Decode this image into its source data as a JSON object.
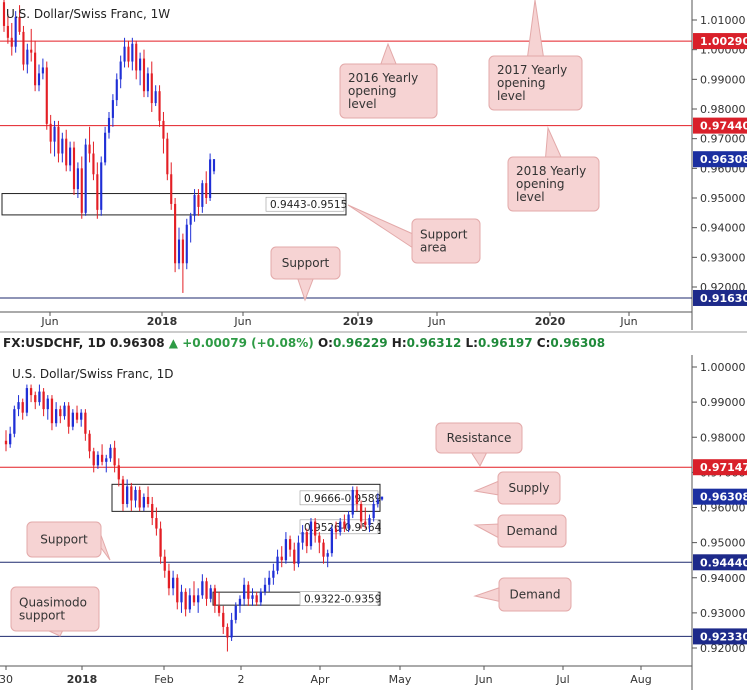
{
  "colors": {
    "bull": "#1f2fd6",
    "bear": "#e31e24",
    "red_level": "#e31e24",
    "blue_level": "#1d2a6e",
    "callout_bg": "#f6d3d3",
    "callout_border": "#e3a9a9",
    "price_tag_red": "#d9202a",
    "price_tag_blue": "#1d2a8a",
    "current_tag": "#1b2fa0"
  },
  "infobar": {
    "symbol": "FX:USDCHF, 1D",
    "last": "0.96308",
    "change": "+0.00079 (+0.08%)",
    "open_label": "O:",
    "open": "0.96229",
    "high_label": "H:",
    "high": "0.96312",
    "low_label": "L:",
    "low": "0.96197",
    "close_label": "C:",
    "close": "0.96308"
  },
  "chart_data": [
    {
      "type": "candlestick",
      "title": "U.S. Dollar/Swiss Franc, 1W",
      "y_axis": {
        "range": [
          0.9135,
          1.0185
        ],
        "tick_labels": [
          "1.01000",
          "1.00000",
          "0.99000",
          "0.98000",
          "0.97000",
          "0.96000",
          "0.95000",
          "0.94000",
          "0.93000",
          "0.92000"
        ]
      },
      "x_axis": {
        "tick_labels": [
          "Jun",
          "2018",
          "Jun",
          "2019",
          "Jun",
          "2020",
          "Jun"
        ]
      },
      "levels": [
        {
          "price": 1.0029,
          "label": "1.00290",
          "style": "red"
        },
        {
          "price": 0.9744,
          "label": "0.97440",
          "style": "red"
        },
        {
          "price": 0.9163,
          "label": "0.91630",
          "style": "blue"
        }
      ],
      "current_price": {
        "price": 0.96308,
        "label": "0.96308"
      },
      "zones": [
        {
          "low": 0.9443,
          "high": 0.9515,
          "label": "0.9443-0.9515"
        }
      ],
      "callouts": [
        "2016 Yearly opening level",
        "2017 Yearly opening level",
        "2018 Yearly opening level",
        "Support area",
        "Support"
      ],
      "candles": [
        {
          "o": 1.016,
          "h": 1.0185,
          "l": 1.006,
          "c": 1.008
        },
        {
          "o": 1.008,
          "h": 1.012,
          "l": 1.002,
          "c": 1.004
        },
        {
          "o": 1.004,
          "h": 1.009,
          "l": 0.998,
          "c": 1.001
        },
        {
          "o": 1.001,
          "h": 1.013,
          "l": 0.999,
          "c": 1.011
        },
        {
          "o": 1.011,
          "h": 1.015,
          "l": 1.005,
          "c": 1.006
        },
        {
          "o": 1.006,
          "h": 1.008,
          "l": 0.993,
          "c": 0.995
        },
        {
          "o": 0.995,
          "h": 1.002,
          "l": 0.992,
          "c": 1.0
        },
        {
          "o": 1.0,
          "h": 1.007,
          "l": 0.996,
          "c": 0.999
        },
        {
          "o": 0.999,
          "h": 1.003,
          "l": 0.986,
          "c": 0.988
        },
        {
          "o": 0.988,
          "h": 0.995,
          "l": 0.986,
          "c": 0.992
        },
        {
          "o": 0.992,
          "h": 0.997,
          "l": 0.99,
          "c": 0.994
        },
        {
          "o": 0.994,
          "h": 0.996,
          "l": 0.973,
          "c": 0.975
        },
        {
          "o": 0.975,
          "h": 0.978,
          "l": 0.965,
          "c": 0.969
        },
        {
          "o": 0.969,
          "h": 0.976,
          "l": 0.964,
          "c": 0.974
        },
        {
          "o": 0.974,
          "h": 0.976,
          "l": 0.962,
          "c": 0.965
        },
        {
          "o": 0.965,
          "h": 0.972,
          "l": 0.962,
          "c": 0.97
        },
        {
          "o": 0.97,
          "h": 0.973,
          "l": 0.959,
          "c": 0.961
        },
        {
          "o": 0.961,
          "h": 0.969,
          "l": 0.959,
          "c": 0.967
        },
        {
          "o": 0.967,
          "h": 0.969,
          "l": 0.951,
          "c": 0.953
        },
        {
          "o": 0.953,
          "h": 0.962,
          "l": 0.95,
          "c": 0.96
        },
        {
          "o": 0.96,
          "h": 0.964,
          "l": 0.943,
          "c": 0.945
        },
        {
          "o": 0.945,
          "h": 0.97,
          "l": 0.944,
          "c": 0.968
        },
        {
          "o": 0.968,
          "h": 0.974,
          "l": 0.962,
          "c": 0.965
        },
        {
          "o": 0.965,
          "h": 0.969,
          "l": 0.956,
          "c": 0.958
        },
        {
          "o": 0.958,
          "h": 0.962,
          "l": 0.943,
          "c": 0.946
        },
        {
          "o": 0.946,
          "h": 0.964,
          "l": 0.944,
          "c": 0.962
        },
        {
          "o": 0.962,
          "h": 0.974,
          "l": 0.961,
          "c": 0.972
        },
        {
          "o": 0.972,
          "h": 0.979,
          "l": 0.97,
          "c": 0.977
        },
        {
          "o": 0.977,
          "h": 0.985,
          "l": 0.974,
          "c": 0.983
        },
        {
          "o": 0.983,
          "h": 0.992,
          "l": 0.981,
          "c": 0.99
        },
        {
          "o": 0.99,
          "h": 0.998,
          "l": 0.987,
          "c": 0.996
        },
        {
          "o": 0.996,
          "h": 1.004,
          "l": 0.994,
          "c": 1.001
        },
        {
          "o": 1.001,
          "h": 1.003,
          "l": 0.994,
          "c": 0.996
        },
        {
          "o": 0.996,
          "h": 1.004,
          "l": 0.993,
          "c": 1.002
        },
        {
          "o": 1.002,
          "h": 1.003,
          "l": 0.99,
          "c": 0.993
        },
        {
          "o": 0.993,
          "h": 0.999,
          "l": 0.988,
          "c": 0.997
        },
        {
          "o": 0.997,
          "h": 1.0,
          "l": 0.984,
          "c": 0.986
        },
        {
          "o": 0.986,
          "h": 0.994,
          "l": 0.984,
          "c": 0.992
        },
        {
          "o": 0.992,
          "h": 0.996,
          "l": 0.979,
          "c": 0.982
        },
        {
          "o": 0.982,
          "h": 0.988,
          "l": 0.981,
          "c": 0.986
        },
        {
          "o": 0.986,
          "h": 0.988,
          "l": 0.974,
          "c": 0.976
        },
        {
          "o": 0.976,
          "h": 0.979,
          "l": 0.965,
          "c": 0.97
        },
        {
          "o": 0.97,
          "h": 0.972,
          "l": 0.956,
          "c": 0.958
        },
        {
          "o": 0.958,
          "h": 0.962,
          "l": 0.946,
          "c": 0.948
        },
        {
          "o": 0.948,
          "h": 0.95,
          "l": 0.925,
          "c": 0.928
        },
        {
          "o": 0.928,
          "h": 0.94,
          "l": 0.926,
          "c": 0.936
        },
        {
          "o": 0.936,
          "h": 0.938,
          "l": 0.918,
          "c": 0.928
        },
        {
          "o": 0.928,
          "h": 0.943,
          "l": 0.926,
          "c": 0.941
        },
        {
          "o": 0.941,
          "h": 0.945,
          "l": 0.935,
          "c": 0.944
        },
        {
          "o": 0.944,
          "h": 0.953,
          "l": 0.942,
          "c": 0.951
        },
        {
          "o": 0.951,
          "h": 0.953,
          "l": 0.944,
          "c": 0.947
        },
        {
          "o": 0.947,
          "h": 0.956,
          "l": 0.945,
          "c": 0.955
        },
        {
          "o": 0.955,
          "h": 0.959,
          "l": 0.948,
          "c": 0.95
        },
        {
          "o": 0.95,
          "h": 0.965,
          "l": 0.949,
          "c": 0.963
        },
        {
          "o": 0.959,
          "h": 0.9631,
          "l": 0.958,
          "c": 0.9631
        }
      ]
    },
    {
      "type": "candlestick",
      "title": "U.S. Dollar/Swiss Franc, 1D",
      "y_axis": {
        "range": [
          0.9155,
          1.0015
        ],
        "tick_labels": [
          "1.00000",
          "0.99000",
          "0.98000",
          "0.97000",
          "0.96000",
          "0.95000",
          "0.94000",
          "0.93000",
          "0.92000"
        ]
      },
      "x_axis": {
        "tick_labels": [
          "30",
          "2018",
          "Feb",
          "2",
          "Apr",
          "May",
          "Jun",
          "Jul",
          "Aug"
        ]
      },
      "levels": [
        {
          "price": 0.97147,
          "label": "0.97147",
          "style": "red"
        },
        {
          "price": 0.9444,
          "label": "0.94440",
          "style": "blue"
        },
        {
          "price": 0.9233,
          "label": "0.92330",
          "style": "blue"
        }
      ],
      "current_price": {
        "price": 0.96308,
        "label": "0.96308"
      },
      "zones": [
        {
          "low": 0.9589,
          "high": 0.9666,
          "label": "0.9666-0.9589"
        },
        {
          "low": 0.9526,
          "high": 0.9564,
          "label": "0.9526-0.9564"
        },
        {
          "low": 0.9322,
          "high": 0.9359,
          "label": "0.9322-0.9359"
        }
      ],
      "callouts": [
        "Resistance",
        "Supply",
        "Demand",
        "Support",
        "Demand",
        "Quasimodo support"
      ],
      "candles": [
        {
          "o": 0.979,
          "h": 0.982,
          "l": 0.976,
          "c": 0.978
        },
        {
          "o": 0.978,
          "h": 0.983,
          "l": 0.977,
          "c": 0.981
        },
        {
          "o": 0.981,
          "h": 0.989,
          "l": 0.98,
          "c": 0.988
        },
        {
          "o": 0.988,
          "h": 0.992,
          "l": 0.986,
          "c": 0.99
        },
        {
          "o": 0.99,
          "h": 0.991,
          "l": 0.985,
          "c": 0.987
        },
        {
          "o": 0.987,
          "h": 0.995,
          "l": 0.986,
          "c": 0.994
        },
        {
          "o": 0.994,
          "h": 0.995,
          "l": 0.99,
          "c": 0.992
        },
        {
          "o": 0.992,
          "h": 0.993,
          "l": 0.988,
          "c": 0.99
        },
        {
          "o": 0.99,
          "h": 0.995,
          "l": 0.989,
          "c": 0.993
        },
        {
          "o": 0.993,
          "h": 0.994,
          "l": 0.986,
          "c": 0.988
        },
        {
          "o": 0.988,
          "h": 0.992,
          "l": 0.985,
          "c": 0.991
        },
        {
          "o": 0.991,
          "h": 0.992,
          "l": 0.982,
          "c": 0.984
        },
        {
          "o": 0.984,
          "h": 0.99,
          "l": 0.983,
          "c": 0.988
        },
        {
          "o": 0.988,
          "h": 0.989,
          "l": 0.984,
          "c": 0.986
        },
        {
          "o": 0.986,
          "h": 0.99,
          "l": 0.985,
          "c": 0.989
        },
        {
          "o": 0.989,
          "h": 0.99,
          "l": 0.981,
          "c": 0.983
        },
        {
          "o": 0.983,
          "h": 0.988,
          "l": 0.982,
          "c": 0.987
        },
        {
          "o": 0.987,
          "h": 0.989,
          "l": 0.984,
          "c": 0.985
        },
        {
          "o": 0.985,
          "h": 0.988,
          "l": 0.983,
          "c": 0.987
        },
        {
          "o": 0.987,
          "h": 0.988,
          "l": 0.979,
          "c": 0.981
        },
        {
          "o": 0.981,
          "h": 0.982,
          "l": 0.974,
          "c": 0.976
        },
        {
          "o": 0.976,
          "h": 0.977,
          "l": 0.97,
          "c": 0.972
        },
        {
          "o": 0.972,
          "h": 0.976,
          "l": 0.971,
          "c": 0.975
        },
        {
          "o": 0.975,
          "h": 0.978,
          "l": 0.972,
          "c": 0.973
        },
        {
          "o": 0.973,
          "h": 0.975,
          "l": 0.97,
          "c": 0.974
        },
        {
          "o": 0.974,
          "h": 0.978,
          "l": 0.973,
          "c": 0.977
        },
        {
          "o": 0.977,
          "h": 0.979,
          "l": 0.97,
          "c": 0.972
        },
        {
          "o": 0.972,
          "h": 0.974,
          "l": 0.966,
          "c": 0.968
        },
        {
          "o": 0.968,
          "h": 0.969,
          "l": 0.959,
          "c": 0.961
        },
        {
          "o": 0.961,
          "h": 0.968,
          "l": 0.96,
          "c": 0.966
        },
        {
          "o": 0.966,
          "h": 0.967,
          "l": 0.959,
          "c": 0.962
        },
        {
          "o": 0.962,
          "h": 0.966,
          "l": 0.96,
          "c": 0.965
        },
        {
          "o": 0.965,
          "h": 0.966,
          "l": 0.959,
          "c": 0.96
        },
        {
          "o": 0.96,
          "h": 0.964,
          "l": 0.959,
          "c": 0.963
        },
        {
          "o": 0.963,
          "h": 0.966,
          "l": 0.96,
          "c": 0.961
        },
        {
          "o": 0.961,
          "h": 0.963,
          "l": 0.955,
          "c": 0.957
        },
        {
          "o": 0.957,
          "h": 0.96,
          "l": 0.952,
          "c": 0.954
        },
        {
          "o": 0.954,
          "h": 0.956,
          "l": 0.944,
          "c": 0.946
        },
        {
          "o": 0.946,
          "h": 0.948,
          "l": 0.94,
          "c": 0.942
        },
        {
          "o": 0.942,
          "h": 0.944,
          "l": 0.935,
          "c": 0.937
        },
        {
          "o": 0.937,
          "h": 0.942,
          "l": 0.935,
          "c": 0.94
        },
        {
          "o": 0.94,
          "h": 0.941,
          "l": 0.931,
          "c": 0.933
        },
        {
          "o": 0.933,
          "h": 0.938,
          "l": 0.93,
          "c": 0.936
        },
        {
          "o": 0.936,
          "h": 0.937,
          "l": 0.929,
          "c": 0.931
        },
        {
          "o": 0.931,
          "h": 0.937,
          "l": 0.93,
          "c": 0.935
        },
        {
          "o": 0.935,
          "h": 0.939,
          "l": 0.932,
          "c": 0.933
        },
        {
          "o": 0.933,
          "h": 0.937,
          "l": 0.93,
          "c": 0.935
        },
        {
          "o": 0.935,
          "h": 0.941,
          "l": 0.934,
          "c": 0.939
        },
        {
          "o": 0.939,
          "h": 0.94,
          "l": 0.932,
          "c": 0.934
        },
        {
          "o": 0.934,
          "h": 0.938,
          "l": 0.933,
          "c": 0.937
        },
        {
          "o": 0.937,
          "h": 0.938,
          "l": 0.93,
          "c": 0.932
        },
        {
          "o": 0.932,
          "h": 0.936,
          "l": 0.929,
          "c": 0.93
        },
        {
          "o": 0.93,
          "h": 0.932,
          "l": 0.924,
          "c": 0.926
        },
        {
          "o": 0.926,
          "h": 0.927,
          "l": 0.919,
          "c": 0.923
        },
        {
          "o": 0.923,
          "h": 0.93,
          "l": 0.922,
          "c": 0.928
        },
        {
          "o": 0.928,
          "h": 0.933,
          "l": 0.927,
          "c": 0.932
        },
        {
          "o": 0.932,
          "h": 0.935,
          "l": 0.93,
          "c": 0.934
        },
        {
          "o": 0.934,
          "h": 0.94,
          "l": 0.932,
          "c": 0.938
        },
        {
          "o": 0.938,
          "h": 0.939,
          "l": 0.932,
          "c": 0.934
        },
        {
          "o": 0.934,
          "h": 0.937,
          "l": 0.932,
          "c": 0.935
        },
        {
          "o": 0.935,
          "h": 0.936,
          "l": 0.932,
          "c": 0.933
        },
        {
          "o": 0.933,
          "h": 0.937,
          "l": 0.932,
          "c": 0.936
        },
        {
          "o": 0.936,
          "h": 0.94,
          "l": 0.935,
          "c": 0.938
        },
        {
          "o": 0.938,
          "h": 0.942,
          "l": 0.936,
          "c": 0.94
        },
        {
          "o": 0.94,
          "h": 0.944,
          "l": 0.938,
          "c": 0.942
        },
        {
          "o": 0.942,
          "h": 0.948,
          "l": 0.941,
          "c": 0.946
        },
        {
          "o": 0.946,
          "h": 0.949,
          "l": 0.943,
          "c": 0.945
        },
        {
          "o": 0.945,
          "h": 0.953,
          "l": 0.944,
          "c": 0.951
        },
        {
          "o": 0.951,
          "h": 0.952,
          "l": 0.946,
          "c": 0.948
        },
        {
          "o": 0.948,
          "h": 0.95,
          "l": 0.942,
          "c": 0.944
        },
        {
          "o": 0.944,
          "h": 0.952,
          "l": 0.943,
          "c": 0.95
        },
        {
          "o": 0.95,
          "h": 0.955,
          "l": 0.948,
          "c": 0.953
        },
        {
          "o": 0.953,
          "h": 0.954,
          "l": 0.947,
          "c": 0.949
        },
        {
          "o": 0.949,
          "h": 0.957,
          "l": 0.948,
          "c": 0.956
        },
        {
          "o": 0.956,
          "h": 0.957,
          "l": 0.95,
          "c": 0.952
        },
        {
          "o": 0.952,
          "h": 0.953,
          "l": 0.947,
          "c": 0.95
        },
        {
          "o": 0.95,
          "h": 0.951,
          "l": 0.944,
          "c": 0.946
        },
        {
          "o": 0.946,
          "h": 0.948,
          "l": 0.943,
          "c": 0.947
        },
        {
          "o": 0.947,
          "h": 0.955,
          "l": 0.946,
          "c": 0.954
        },
        {
          "o": 0.954,
          "h": 0.956,
          "l": 0.951,
          "c": 0.953
        },
        {
          "o": 0.953,
          "h": 0.957,
          "l": 0.952,
          "c": 0.956
        },
        {
          "o": 0.956,
          "h": 0.958,
          "l": 0.953,
          "c": 0.954
        },
        {
          "o": 0.954,
          "h": 0.959,
          "l": 0.953,
          "c": 0.958
        },
        {
          "o": 0.958,
          "h": 0.966,
          "l": 0.957,
          "c": 0.965
        },
        {
          "o": 0.965,
          "h": 0.966,
          "l": 0.959,
          "c": 0.961
        },
        {
          "o": 0.961,
          "h": 0.962,
          "l": 0.954,
          "c": 0.956
        },
        {
          "o": 0.956,
          "h": 0.96,
          "l": 0.954,
          "c": 0.955
        },
        {
          "o": 0.955,
          "h": 0.958,
          "l": 0.953,
          "c": 0.957
        },
        {
          "o": 0.957,
          "h": 0.962,
          "l": 0.956,
          "c": 0.961
        },
        {
          "o": 0.961,
          "h": 0.964,
          "l": 0.96,
          "c": 0.9623
        },
        {
          "o": 0.96229,
          "h": 0.96312,
          "l": 0.96197,
          "c": 0.96308
        }
      ]
    }
  ]
}
